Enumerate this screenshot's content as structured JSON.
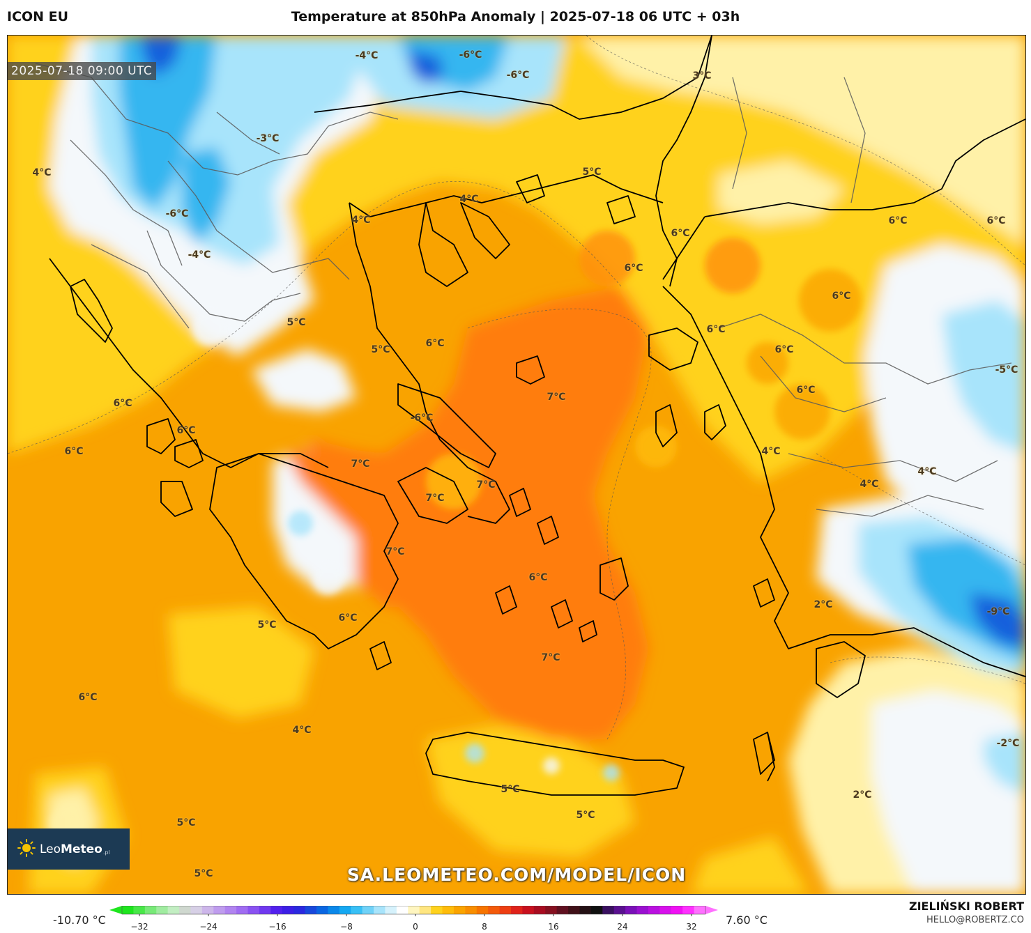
{
  "header": {
    "model": "ICON EU",
    "title": "Temperature at 850hPa Anomaly | 2025-07-18 06 UTC + 03h"
  },
  "map": {
    "valid_time": "2025-07-18 09:00 UTC",
    "colors": {
      "sea_orange": "#f9a300",
      "hot_orange": "#ff7d0a",
      "warm_yellow": "#ffd21c",
      "pale_yellow": "#fff1a8",
      "white_zone": "#f4f8fb",
      "light_blue": "#a8e4fb",
      "mid_blue": "#36b6f0",
      "deep_blue": "#1460dc",
      "coast": "#000000"
    },
    "labels": [
      {
        "text": "-4°C"
      },
      {
        "text": "-6°C"
      },
      {
        "text": "-6°C"
      },
      {
        "text": "3°C"
      },
      {
        "text": "-3°C"
      },
      {
        "text": "4°C"
      },
      {
        "text": "5°C"
      },
      {
        "text": "4°C"
      },
      {
        "text": "4°C"
      },
      {
        "text": "-6°C"
      },
      {
        "text": "6°C"
      },
      {
        "text": "6°C"
      },
      {
        "text": "6°C"
      },
      {
        "text": "-4°C"
      },
      {
        "text": "6°C"
      },
      {
        "text": "6°C"
      },
      {
        "text": "5°C"
      },
      {
        "text": "6°C"
      },
      {
        "text": "5°C"
      },
      {
        "text": "6°C"
      },
      {
        "text": "6°C"
      },
      {
        "text": "-5°C"
      },
      {
        "text": "6°C"
      },
      {
        "text": "7°C"
      },
      {
        "text": "6°C"
      },
      {
        "text": "-6°C"
      },
      {
        "text": "6°C"
      },
      {
        "text": "6°C"
      },
      {
        "text": "4°C"
      },
      {
        "text": "7°C"
      },
      {
        "text": "7°C"
      },
      {
        "text": "4°C"
      },
      {
        "text": "4°C"
      },
      {
        "text": "7°C"
      },
      {
        "text": "7°C"
      },
      {
        "text": "6°C"
      },
      {
        "text": "2°C"
      },
      {
        "text": "-9°C"
      },
      {
        "text": "5°C"
      },
      {
        "text": "6°C"
      },
      {
        "text": "7°C"
      },
      {
        "text": "6°C"
      },
      {
        "text": "4°C"
      },
      {
        "text": "-2°C"
      },
      {
        "text": "5°C"
      },
      {
        "text": "2°C"
      },
      {
        "text": "5°C"
      },
      {
        "text": "5°C"
      },
      {
        "text": "5°C"
      }
    ],
    "logo": {
      "brand_light": "Leo",
      "brand_bold": "Meteo",
      "suffix": ".pl"
    },
    "url": "SA.LEOMETEO.COM/MODEL/ICON"
  },
  "colorbar": {
    "min_label": "-10.70 °C",
    "max_label": "7.60 °C",
    "ticks": [
      "−32",
      "−24",
      "−16",
      "−8",
      "0",
      "8",
      "16",
      "24",
      "32"
    ],
    "swatches": [
      "#1ee61e",
      "#48e848",
      "#78ea78",
      "#a0eca0",
      "#c2eec2",
      "#cfd8cf",
      "#d7d0e6",
      "#cdb6ea",
      "#bf9cee",
      "#b184f0",
      "#a06cf2",
      "#8a52f2",
      "#7038f0",
      "#5220ee",
      "#3c1ee6",
      "#2a28e0",
      "#1848dc",
      "#0a66e2",
      "#0a88ea",
      "#14a8f2",
      "#38c0f6",
      "#70d2f8",
      "#a8e4fb",
      "#d6f2fc",
      "#ffffff",
      "#fff6c0",
      "#ffe680",
      "#ffd21c",
      "#ffbc0a",
      "#fba400",
      "#f98e00",
      "#f77400",
      "#f45a0a",
      "#ee3e12",
      "#e0221a",
      "#c8101e",
      "#a80c20",
      "#861020",
      "#601020",
      "#401018",
      "#241014",
      "#101010",
      "#3a1060",
      "#5a1090",
      "#7a10b8",
      "#9a10d0",
      "#ba10e0",
      "#d810ec",
      "#f010f4",
      "#ff30ff",
      "#ff70ff"
    ]
  },
  "credit": {
    "name": "ZIELIŃSKI ROBERT",
    "email": "HELLO@ROBERTZ.CO"
  }
}
